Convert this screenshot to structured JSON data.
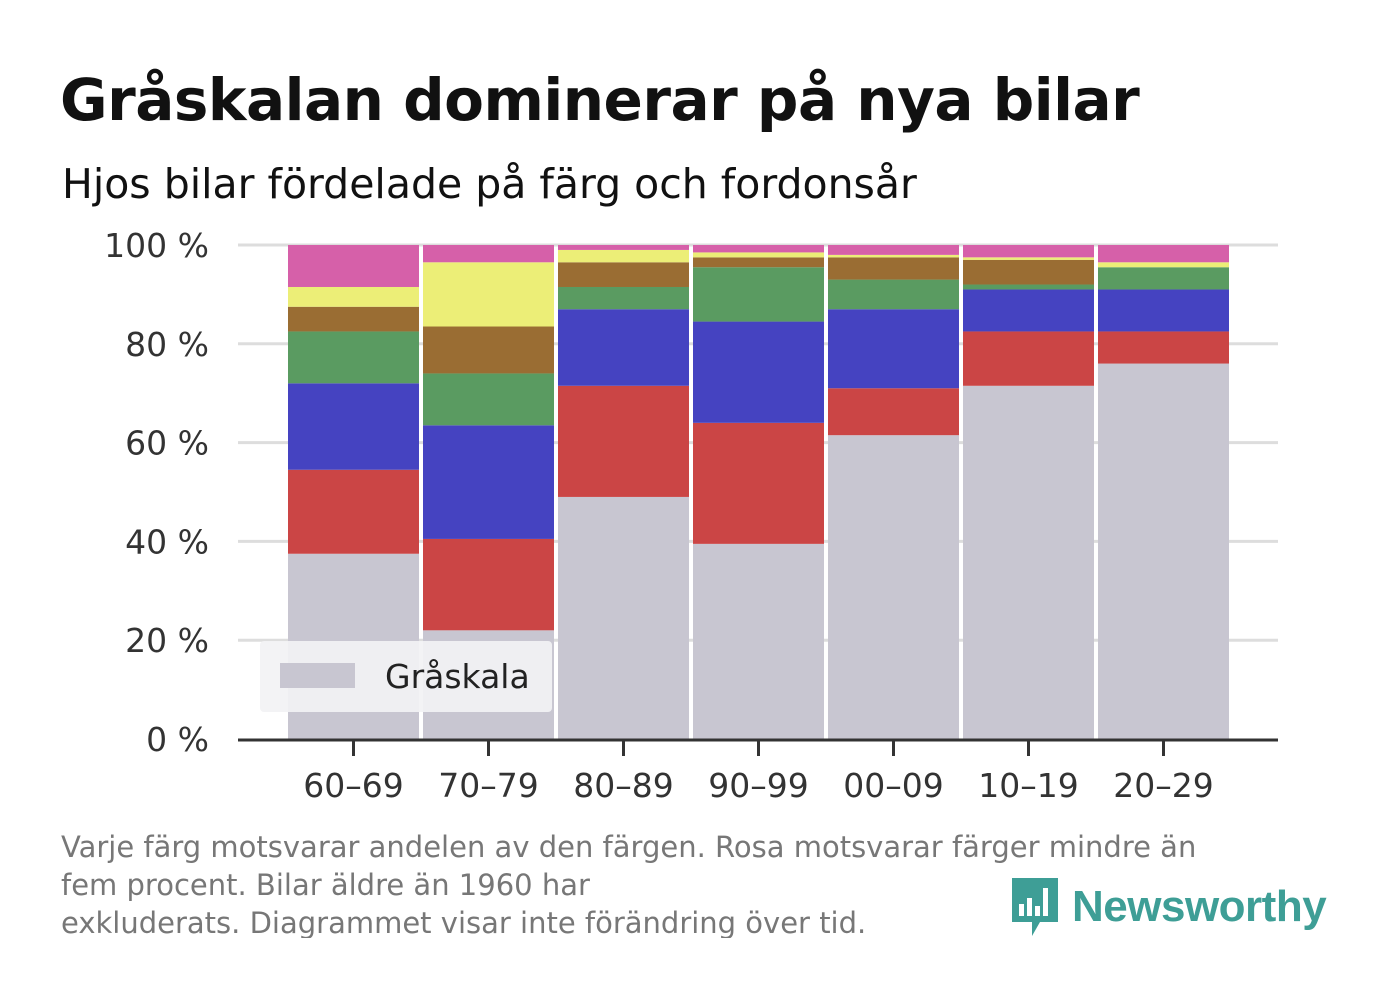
{
  "header": {
    "title": "Gråskalan dominerar på nya bilar",
    "subtitle": "Hjos bilar fördelade på färg och fordonsår"
  },
  "note": {
    "line1": "Varje färg motsvarar andelen av den färgen. Rosa motsvarar färger mindre än",
    "line2": "fem procent. Bilar äldre än 1960 har",
    "line3": "exkluderats. Diagrammet visar inte förändring över tid."
  },
  "brand": {
    "name": "Newsworthy",
    "icon": "bar-chart-speech-bubble-icon",
    "color": "#3e9e96"
  },
  "chart_data": {
    "type": "bar",
    "stacked": true,
    "categories": [
      "60–69",
      "70–79",
      "80–89",
      "90–99",
      "00–09",
      "10–19",
      "20–29"
    ],
    "series": [
      {
        "name": "Gråskala",
        "color": "#c8c6d1",
        "values": [
          37.5,
          22,
          49,
          39.5,
          61.5,
          71.5,
          76
        ]
      },
      {
        "color": "#cb4545",
        "values": [
          17,
          18.5,
          22.5,
          24.5,
          9.5,
          11,
          6.5
        ]
      },
      {
        "color": "#4543c1",
        "values": [
          17.5,
          23,
          15.5,
          20.5,
          16,
          8.5,
          8.5
        ]
      },
      {
        "color": "#5a9b61",
        "values": [
          10.5,
          10.5,
          4.5,
          11,
          6,
          1,
          4.5
        ]
      },
      {
        "color": "#9a6d33",
        "values": [
          5,
          9.5,
          5,
          2,
          4.5,
          5,
          0
        ]
      },
      {
        "color": "#ecee77",
        "values": [
          4,
          13,
          2.5,
          1,
          0.5,
          0.5,
          1
        ]
      },
      {
        "color": "#d660a9",
        "values": [
          8.5,
          3.5,
          1,
          1.5,
          2,
          2.5,
          3.5
        ]
      }
    ],
    "yticks": [
      "0 %",
      "20 %",
      "40 %",
      "60 %",
      "80 %",
      "100 %"
    ],
    "ylim": [
      0,
      100
    ],
    "grid": true,
    "legend": {
      "position": "bottom-left",
      "entries": [
        "Gråskala"
      ]
    }
  }
}
